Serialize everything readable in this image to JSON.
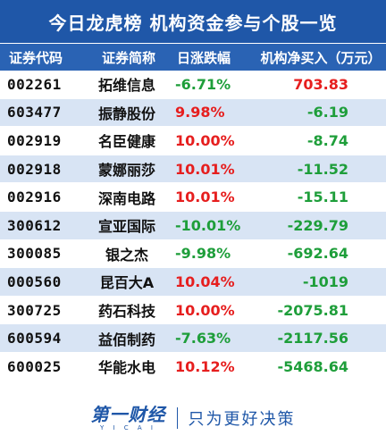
{
  "title": "今日龙虎榜  机构资金参与个股一览",
  "header": {
    "code": "证券代码",
    "name": "证券简称",
    "pct": "日涨跌幅",
    "net": "机构净买入（万元）"
  },
  "rows": [
    {
      "code": "002261",
      "name": "拓维信息",
      "pct": "-6.71%",
      "net": "703.83",
      "pct_color": "green",
      "net_color": "red"
    },
    {
      "code": "603477",
      "name": "振静股份",
      "pct": "9.98%",
      "net": "-6.19",
      "pct_color": "red",
      "net_color": "green"
    },
    {
      "code": "002919",
      "name": "名臣健康",
      "pct": "10.00%",
      "net": "-8.74",
      "pct_color": "red",
      "net_color": "green"
    },
    {
      "code": "002918",
      "name": "蒙娜丽莎",
      "pct": "10.01%",
      "net": "-11.52",
      "pct_color": "red",
      "net_color": "green"
    },
    {
      "code": "002916",
      "name": "深南电路",
      "pct": "10.01%",
      "net": "-15.11",
      "pct_color": "red",
      "net_color": "green"
    },
    {
      "code": "300612",
      "name": "宣亚国际",
      "pct": "-10.01%",
      "net": "-229.79",
      "pct_color": "green",
      "net_color": "green"
    },
    {
      "code": "300085",
      "name": "银之杰",
      "pct": "-9.98%",
      "net": "-692.64",
      "pct_color": "green",
      "net_color": "green"
    },
    {
      "code": "000560",
      "name": "昆百大A",
      "pct": "10.04%",
      "net": "-1019",
      "pct_color": "red",
      "net_color": "green"
    },
    {
      "code": "300725",
      "name": "药石科技",
      "pct": "10.00%",
      "net": "-2075.81",
      "pct_color": "red",
      "net_color": "green"
    },
    {
      "code": "600594",
      "name": "益佰制药",
      "pct": "-7.63%",
      "net": "-2117.56",
      "pct_color": "green",
      "net_color": "green"
    },
    {
      "code": "600025",
      "name": "华能水电",
      "pct": "10.12%",
      "net": "-5468.64",
      "pct_color": "red",
      "net_color": "green"
    }
  ],
  "footer": {
    "logo": "第一财经",
    "logo_sub": "Y I C A I",
    "slogan": "只为更好决策"
  },
  "colors": {
    "brand_blue": "#1f57a8",
    "row_alt": "#d8e4f4",
    "up_red": "#e61e1e",
    "down_green": "#1e9e3a"
  }
}
